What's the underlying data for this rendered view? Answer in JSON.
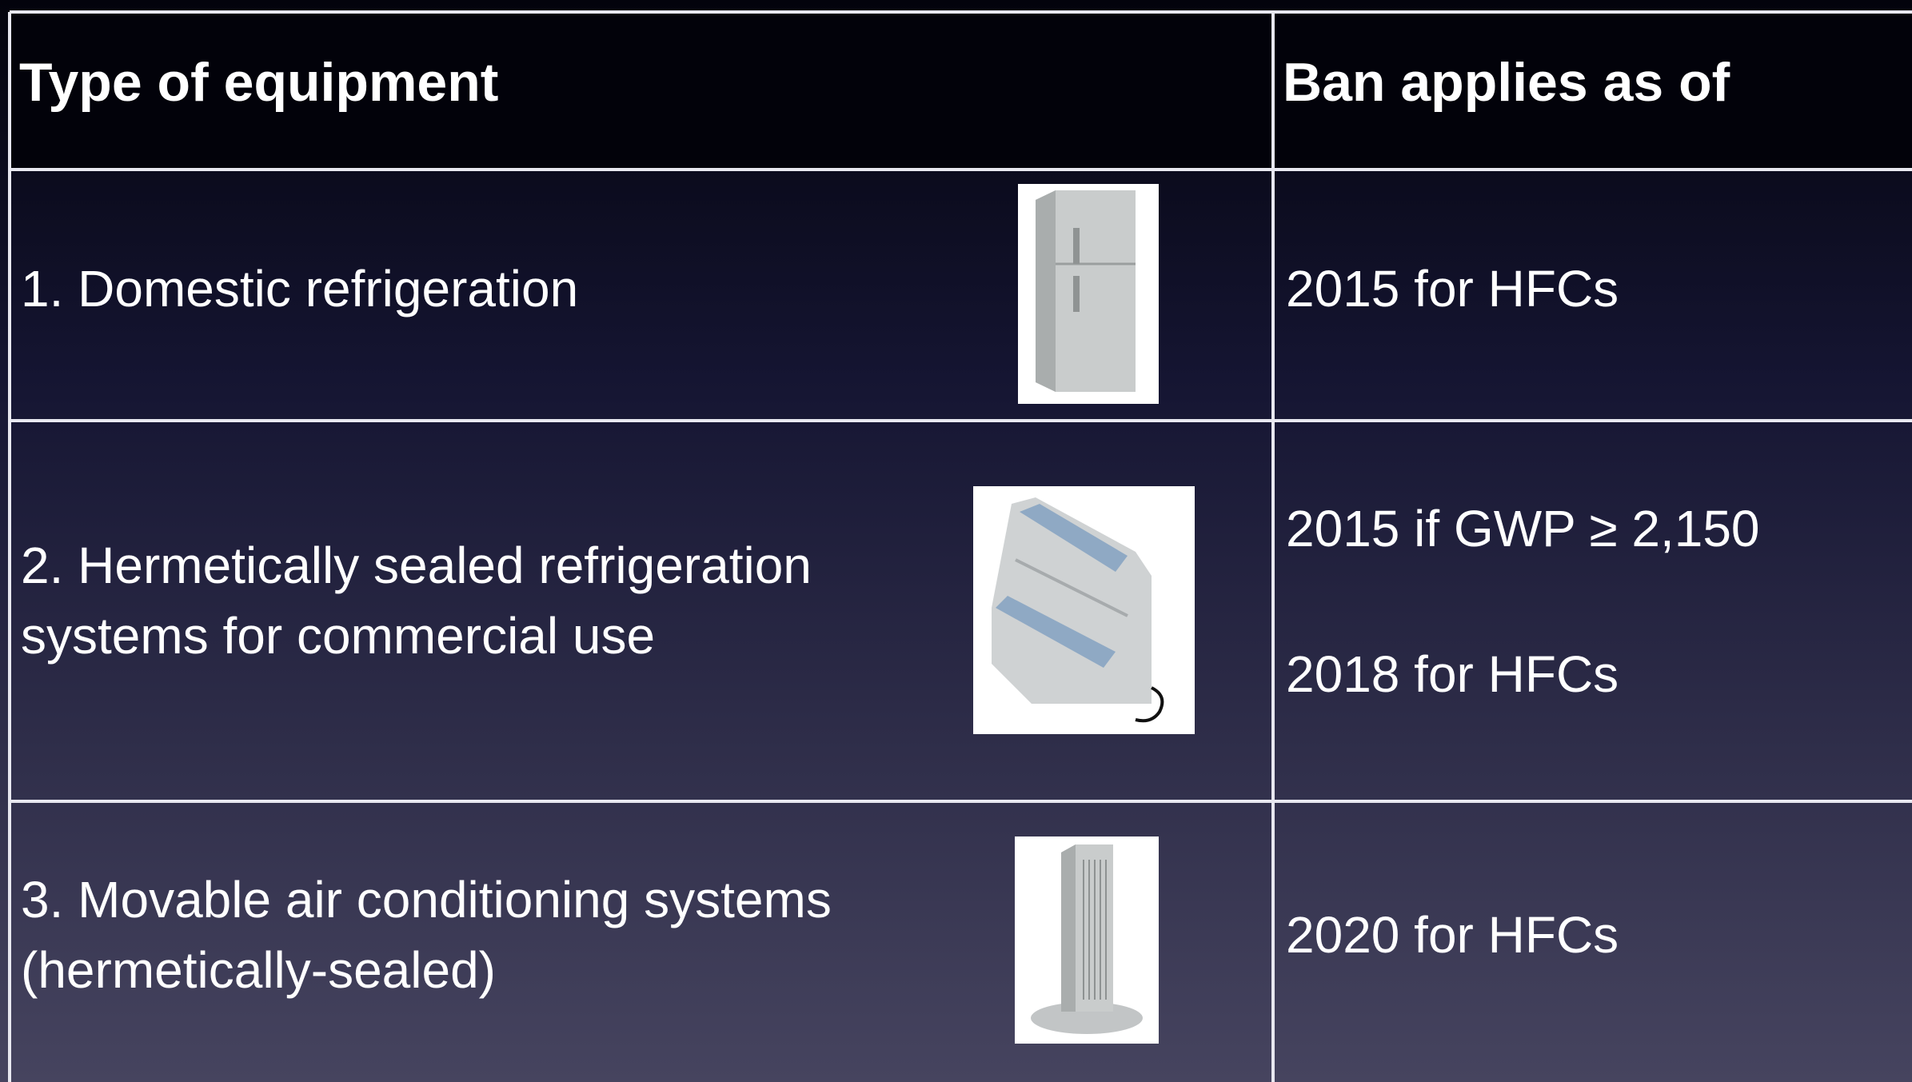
{
  "table": {
    "header": [
      "Type of equipment",
      "Ban applies as of"
    ],
    "rows": [
      {
        "equipment": [
          "1. Domestic refrigeration"
        ],
        "ban": [
          "2015 for HFCs"
        ]
      },
      {
        "equipment": [
          "2. Hermetically sealed refrigeration",
          "systems for commercial use"
        ],
        "ban": [
          "2015 if GWP ≥ 2,150",
          "2018 for HFCs"
        ]
      },
      {
        "equipment": [
          "3. Movable air conditioning systems",
          "(hermetically-sealed)"
        ],
        "ban": [
          "2020 for HFCs"
        ]
      }
    ]
  }
}
